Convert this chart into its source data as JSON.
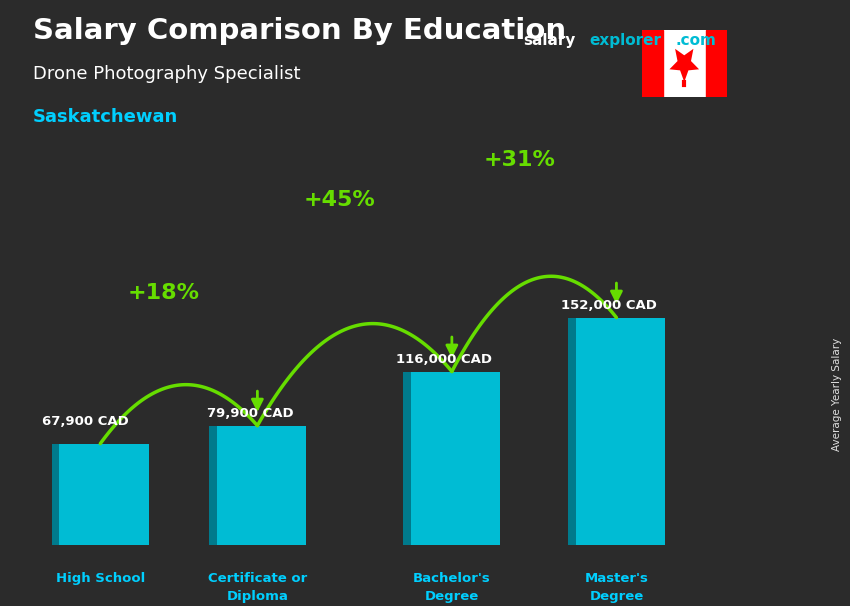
{
  "title_main": "Salary Comparison By Education",
  "title_sub": "Drone Photography Specialist",
  "title_location": "Saskatchewan",
  "categories": [
    "High School",
    "Certificate or\nDiploma",
    "Bachelor's\nDegree",
    "Master's\nDegree"
  ],
  "values": [
    67900,
    79900,
    116000,
    152000
  ],
  "value_labels": [
    "67,900 CAD",
    "79,900 CAD",
    "116,000 CAD",
    "152,000 CAD"
  ],
  "pct_labels": [
    "+18%",
    "+45%",
    "+31%"
  ],
  "bar_color": "#00bcd4",
  "bar_color_dark": "#007a8c",
  "bg_color": "#2b2b2b",
  "text_color_white": "#ffffff",
  "text_color_cyan": "#00cfff",
  "text_color_green": "#66dd00",
  "arrow_color": "#66dd00",
  "ylabel_text": "Average Yearly Salary",
  "watermark_salary_color": "#ffffff",
  "watermark_explorer_color": "#00bcd4",
  "watermark_com_color": "#00bcd4",
  "ylim": [
    0,
    185000
  ],
  "flag_red": "#FF0000",
  "flag_white": "#FFFFFF"
}
